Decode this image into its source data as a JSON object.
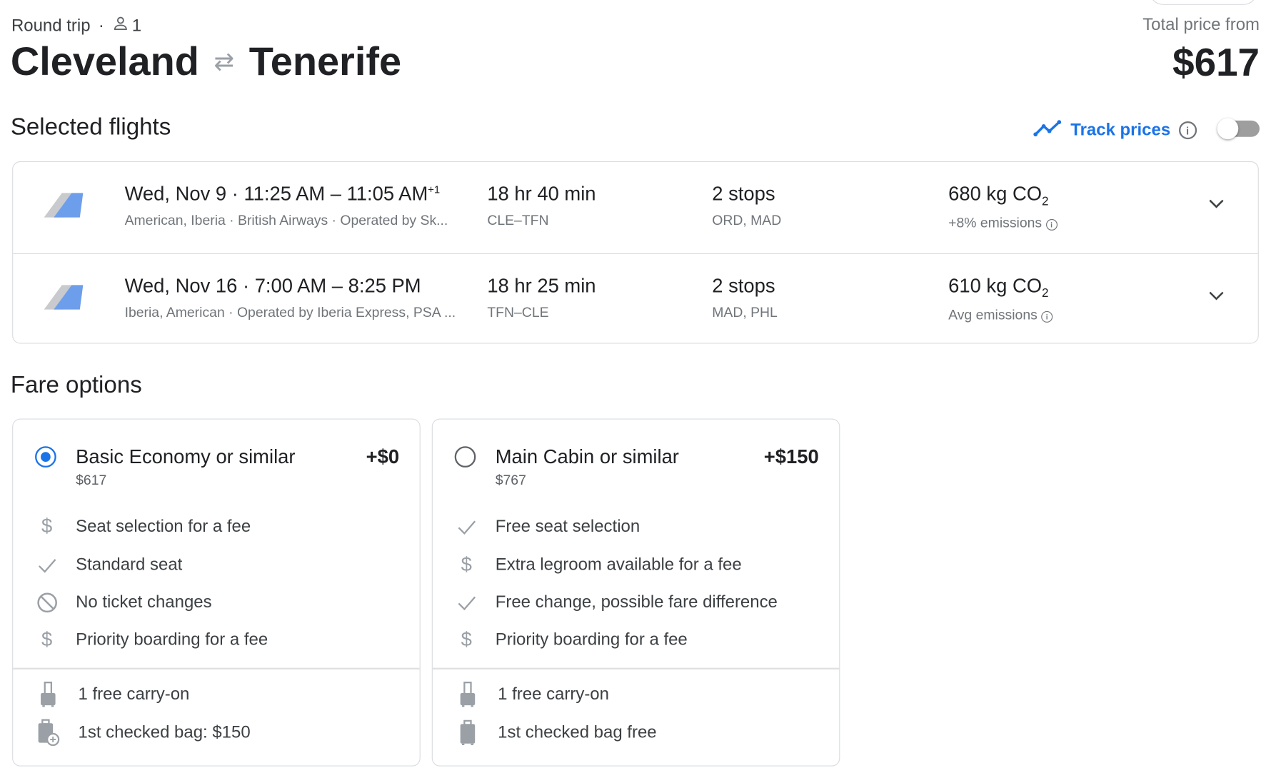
{
  "header": {
    "trip_type": "Round trip",
    "passengers": "1",
    "origin": "Cleveland",
    "destination": "Tenerife",
    "total_price_label": "Total price from",
    "total_price": "$617"
  },
  "selected_flights": {
    "heading": "Selected flights",
    "track_prices_label": "Track prices",
    "track_prices_enabled": false,
    "accent_color": "#1a73e8",
    "flights": [
      {
        "date": "Wed, Nov 9",
        "times": "11:25 AM – 11:05 AM",
        "day_offset": "+1",
        "airlines": "American, Iberia · British Airways · Operated by Sk...",
        "duration": "18 hr 40 min",
        "route": "CLE–TFN",
        "stops": "2 stops",
        "stop_airports": "ORD, MAD",
        "emissions": "680 kg CO",
        "emissions_sub": "2",
        "emissions_note": "+8% emissions"
      },
      {
        "date": "Wed, Nov 16",
        "times": "7:00 AM – 8:25 PM",
        "day_offset": "",
        "airlines": "Iberia, American · Operated by Iberia Express, PSA ...",
        "duration": "18 hr 25 min",
        "route": "TFN–CLE",
        "stops": "2 stops",
        "stop_airports": "MAD, PHL",
        "emissions": "610 kg CO",
        "emissions_sub": "2",
        "emissions_note": "Avg emissions"
      }
    ]
  },
  "fare_options": {
    "heading": "Fare options",
    "options": [
      {
        "name": "Basic Economy",
        "suffix": " or similar",
        "price": "$617",
        "delta": "+$0",
        "selected": true,
        "features": [
          {
            "icon": "dollar-icon",
            "text": "Seat selection for a fee"
          },
          {
            "icon": "check-icon",
            "text": "Standard seat"
          },
          {
            "icon": "block-icon",
            "text": "No ticket changes"
          },
          {
            "icon": "dollar-icon",
            "text": "Priority boarding for a fee"
          }
        ],
        "bags": [
          {
            "icon": "carry-on-icon",
            "text": "1 free carry-on"
          },
          {
            "icon": "checked-bag-add-icon",
            "text": "1st checked bag: $150"
          }
        ]
      },
      {
        "name": "Main Cabin",
        "suffix": " or similar",
        "price": "$767",
        "delta": "+$150",
        "selected": false,
        "features": [
          {
            "icon": "check-icon",
            "text": "Free seat selection"
          },
          {
            "icon": "dollar-icon",
            "text": "Extra legroom available for a fee"
          },
          {
            "icon": "check-icon",
            "text": "Free change, possible fare difference"
          },
          {
            "icon": "dollar-icon",
            "text": "Priority boarding for a fee"
          }
        ],
        "bags": [
          {
            "icon": "carry-on-icon",
            "text": "1 free carry-on"
          },
          {
            "icon": "checked-bag-icon",
            "text": "1st checked bag free"
          }
        ]
      }
    ]
  }
}
